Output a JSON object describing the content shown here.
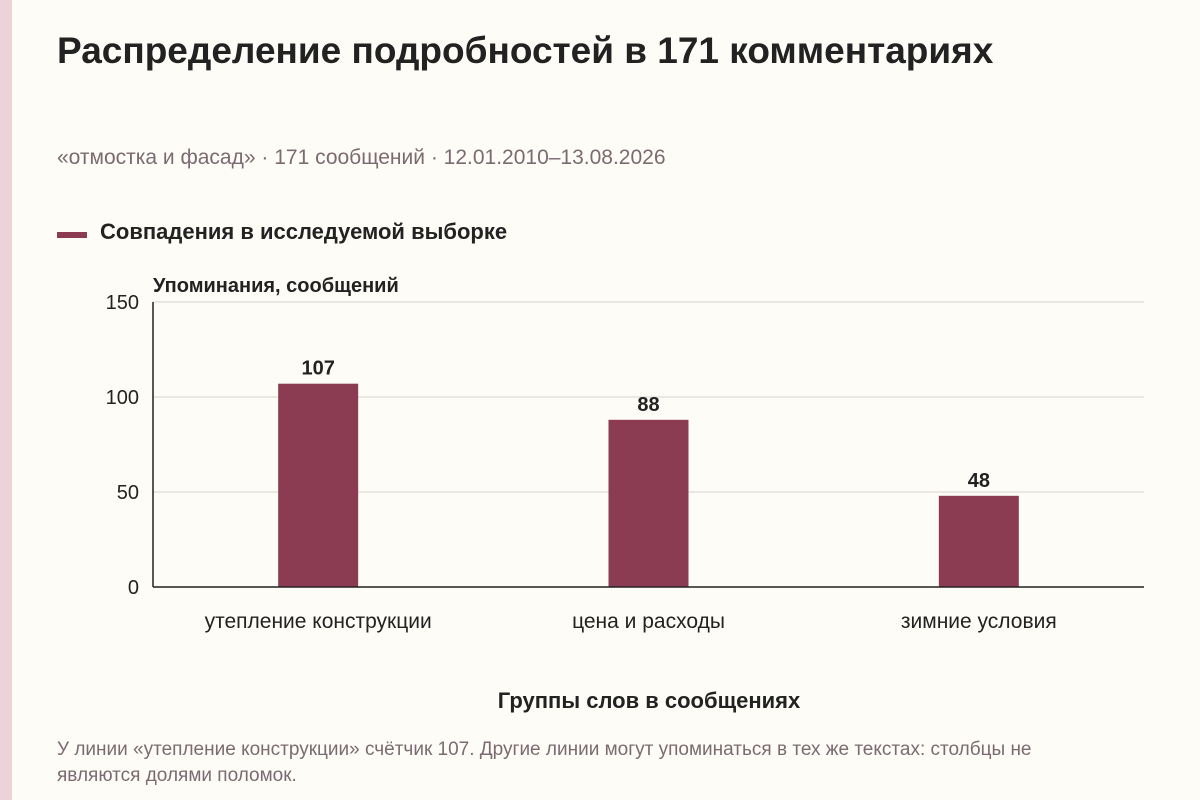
{
  "header": {
    "title": "Распределение подробностей в 171 комментариях",
    "subtitle": "«отмостка и фасад» · 171 сообщений · 12.01.2010–13.08.2026"
  },
  "legend": {
    "label": "Совпадения в исследуемой выборке"
  },
  "colors": {
    "bar": "#8b3c52",
    "axis": "#222222",
    "grid": "#d9d5cc",
    "muted_text": "#7c6a72",
    "accent_strip": "#ecd3da"
  },
  "chart_data": {
    "type": "bar",
    "title": "Распределение подробностей в 171 комментариях",
    "ylabel": "Упоминания, сообщений",
    "xlabel": "Группы слов в сообщениях",
    "categories": [
      "утепление конструкции",
      "цена и расходы",
      "зимние условия"
    ],
    "series": [
      {
        "name": "Совпадения в исследуемой выборке",
        "values": [
          107,
          88,
          48
        ]
      }
    ],
    "ylim": [
      0,
      150
    ],
    "yticks": [
      0,
      50,
      100,
      150
    ],
    "grid": true,
    "data_labels": true
  },
  "footer": {
    "note": "У линии «утепление конструкции» счётчик 107. Другие линии могут упоминаться в тех же текстах: столбцы не являются долями поломок."
  }
}
